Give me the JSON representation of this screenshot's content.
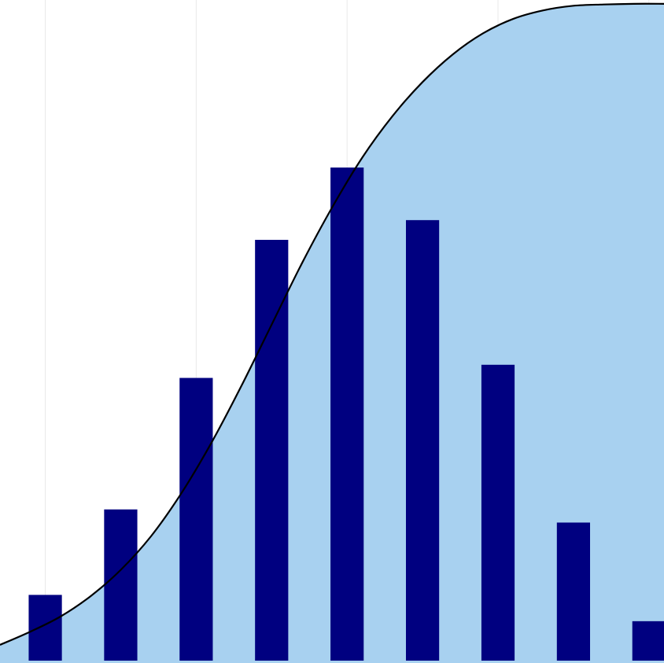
{
  "colors": {
    "background": "#ffffff",
    "bar": "#000080",
    "area": "#a8d1f0",
    "curve": "#000000",
    "grid": "#e8e8e8"
  },
  "chart_data": {
    "type": "bar",
    "title": "",
    "xlabel": "",
    "ylabel": "",
    "grid": "vertical",
    "legend": "none",
    "xlim": [
      0.4,
      9.2
    ],
    "ylim": [
      0,
      0.1
    ],
    "gridlines_x": [
      1,
      3,
      5,
      7,
      9
    ],
    "categories": [
      1,
      2,
      3,
      4,
      5,
      6,
      7,
      8,
      9
    ],
    "values": [
      0.01,
      0.023,
      0.043,
      0.064,
      0.075,
      0.067,
      0.045,
      0.021,
      0.006
    ],
    "series": [
      {
        "type": "area",
        "x": [
          0.4,
          0.8,
          1.2,
          1.6,
          2.0,
          2.4,
          2.8,
          3.2,
          3.6,
          4.0,
          4.4,
          4.8,
          5.2,
          5.6,
          6.0,
          6.4,
          6.8,
          7.2,
          7.6,
          8.0,
          8.4,
          8.8,
          9.2
        ],
        "values": [
          0.0024,
          0.0044,
          0.0067,
          0.0098,
          0.0138,
          0.0189,
          0.0254,
          0.0331,
          0.0418,
          0.0511,
          0.0604,
          0.0689,
          0.0765,
          0.0828,
          0.088,
          0.0922,
          0.0954,
          0.0976,
          0.0989,
          0.0996,
          0.0998,
          0.0999,
          0.0999
        ]
      }
    ]
  }
}
